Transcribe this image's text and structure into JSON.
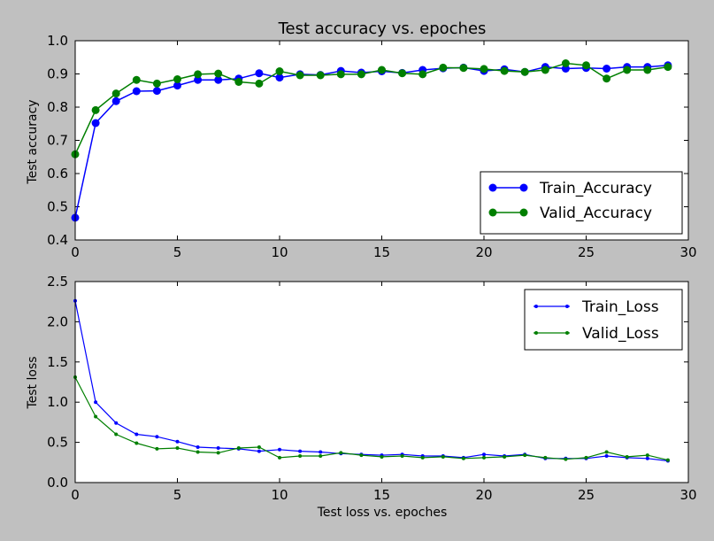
{
  "chart_data": [
    {
      "type": "line",
      "title": "Test accuracy vs. epoches",
      "xlabel": "",
      "ylabel": "Test accuracy",
      "xlim": [
        0,
        30
      ],
      "ylim": [
        0.4,
        1.0
      ],
      "xticks": [
        "0",
        "5",
        "10",
        "15",
        "20",
        "25",
        "30"
      ],
      "yticks": [
        "0.4",
        "0.5",
        "0.6",
        "0.7",
        "0.8",
        "0.9",
        "1.0"
      ],
      "grid": false,
      "legend": "lower-right",
      "x": [
        0,
        1,
        2,
        3,
        4,
        5,
        6,
        7,
        8,
        9,
        10,
        11,
        12,
        13,
        14,
        15,
        16,
        17,
        18,
        19,
        20,
        21,
        22,
        23,
        24,
        25,
        26,
        27,
        28,
        29
      ],
      "series": [
        {
          "name": "Train_Accuracy",
          "color": "#0000ff",
          "marker": "large-dot",
          "values": [
            0.467,
            0.752,
            0.818,
            0.848,
            0.849,
            0.865,
            0.882,
            0.882,
            0.886,
            0.902,
            0.889,
            0.899,
            0.897,
            0.909,
            0.904,
            0.908,
            0.903,
            0.912,
            0.917,
            0.919,
            0.909,
            0.914,
            0.906,
            0.921,
            0.916,
            0.918,
            0.916,
            0.921,
            0.921,
            0.926
          ]
        },
        {
          "name": "Valid_Accuracy",
          "color": "#007f00",
          "marker": "large-dot",
          "values": [
            0.658,
            0.791,
            0.841,
            0.882,
            0.871,
            0.884,
            0.899,
            0.901,
            0.876,
            0.871,
            0.908,
            0.896,
            0.896,
            0.899,
            0.899,
            0.912,
            0.902,
            0.899,
            0.919,
            0.918,
            0.915,
            0.909,
            0.906,
            0.912,
            0.932,
            0.926,
            0.886,
            0.912,
            0.912,
            0.921
          ]
        }
      ]
    },
    {
      "type": "line",
      "title": "",
      "xlabel": "Test loss vs. epoches",
      "ylabel": "Test loss",
      "xlim": [
        0,
        30
      ],
      "ylim": [
        0.0,
        2.5
      ],
      "xticks": [
        "0",
        "5",
        "10",
        "15",
        "20",
        "25",
        "30"
      ],
      "yticks": [
        "0.0",
        "0.5",
        "1.0",
        "1.5",
        "2.0",
        "2.5"
      ],
      "grid": false,
      "legend": "top-right",
      "x": [
        0,
        1,
        2,
        3,
        4,
        5,
        6,
        7,
        8,
        9,
        10,
        11,
        12,
        13,
        14,
        15,
        16,
        17,
        18,
        19,
        20,
        21,
        22,
        23,
        24,
        25,
        26,
        27,
        28,
        29
      ],
      "series": [
        {
          "name": "Train_Loss",
          "color": "#0000ff",
          "marker": "small-dot",
          "values": [
            2.26,
            1.0,
            0.74,
            0.6,
            0.57,
            0.51,
            0.44,
            0.43,
            0.42,
            0.39,
            0.41,
            0.39,
            0.38,
            0.36,
            0.35,
            0.34,
            0.35,
            0.33,
            0.33,
            0.31,
            0.35,
            0.33,
            0.35,
            0.3,
            0.3,
            0.3,
            0.33,
            0.31,
            0.3,
            0.27
          ]
        },
        {
          "name": "Valid_Loss",
          "color": "#007f00",
          "marker": "small-dot",
          "values": [
            1.31,
            0.82,
            0.6,
            0.49,
            0.42,
            0.43,
            0.38,
            0.37,
            0.43,
            0.44,
            0.31,
            0.33,
            0.33,
            0.37,
            0.34,
            0.32,
            0.33,
            0.31,
            0.32,
            0.3,
            0.31,
            0.32,
            0.34,
            0.31,
            0.29,
            0.31,
            0.38,
            0.32,
            0.34,
            0.28
          ]
        }
      ]
    }
  ]
}
